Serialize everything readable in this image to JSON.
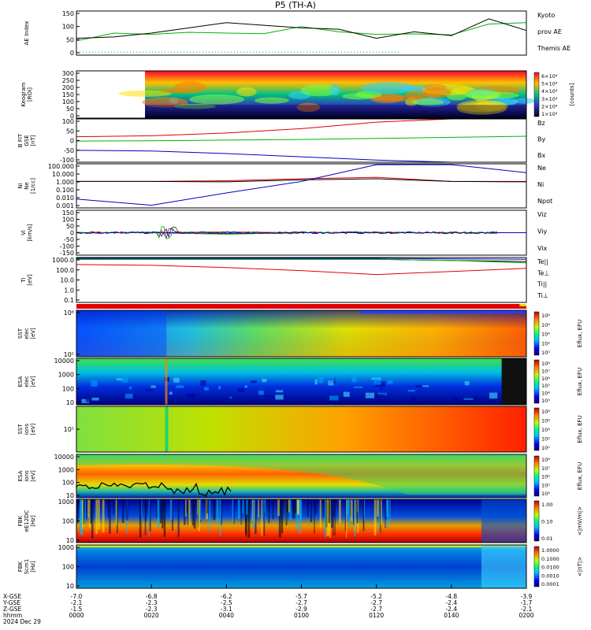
{
  "title": "P5 (TH-A)",
  "colors": {
    "red": "#e00000",
    "green": "#00b400",
    "blue": "#0000c8",
    "black": "#000000",
    "green_legend": "#00c000"
  },
  "panels": [
    {
      "id": "ae",
      "ylabel": [
        "AE Index"
      ],
      "ticks": [
        "150",
        "100",
        "50",
        "0"
      ],
      "legend": [
        [
          "Kyoto",
          "green"
        ],
        [
          "prov AE",
          "green"
        ],
        [
          "Themis AE",
          "black"
        ]
      ]
    },
    {
      "id": "keogram",
      "ylabel": [
        "Keogram",
        "[ROI]"
      ],
      "ticks": [
        "300",
        "250",
        "200",
        "150",
        "100",
        "50",
        "0"
      ],
      "colorbar_ticks": [
        "6×10⁴",
        "5×10⁴",
        "4×10⁴",
        "3×10⁴",
        "2×10⁴",
        "1×10⁴"
      ],
      "colorbar_label": "[counts]"
    },
    {
      "id": "bfield",
      "ylabel": [
        "B FIT",
        "GSE",
        "[nT]"
      ],
      "ticks": [
        "100",
        "50",
        "0",
        "-50",
        "-100"
      ],
      "legend": [
        [
          "Bz",
          "red"
        ],
        [
          "By",
          "green"
        ],
        [
          "Bx",
          "blue"
        ]
      ]
    },
    {
      "id": "density",
      "ylabel": [
        "Ni",
        "Ne",
        "[1/cc]"
      ],
      "ticks": [
        "100.000",
        "10.000",
        "1.000",
        "0.100",
        "0.010",
        "0.001"
      ],
      "legend": [
        [
          "Ne",
          "red"
        ],
        [
          "Ni",
          "black"
        ],
        [
          "Npot",
          "blue"
        ]
      ]
    },
    {
      "id": "velocity",
      "ylabel": [
        "Vi",
        "[km/s]"
      ],
      "ticks": [
        "150",
        "100",
        "50",
        "0",
        "-50",
        "-100",
        "-150"
      ],
      "legend": [
        [
          "Viz",
          "red"
        ],
        [
          "Viy",
          "green"
        ],
        [
          "Vix",
          "blue"
        ]
      ]
    },
    {
      "id": "temperature",
      "ylabel": [
        "Ti",
        "[eV]"
      ],
      "ticks": [
        "1000.0",
        "100.0",
        "10.0",
        "1.0",
        "0.1"
      ],
      "legend": [
        [
          "Te||",
          "black"
        ],
        [
          "Te⊥",
          "red"
        ],
        [
          "Ti||",
          "green"
        ],
        [
          "Ti⊥",
          "blue"
        ]
      ]
    },
    {
      "id": "sst_e",
      "ylabel": [
        "SST",
        "elec",
        "[eV]"
      ],
      "ticks": [
        "10⁶",
        "10⁵"
      ],
      "colorbar_ticks": [
        "10⁸",
        "10⁶",
        "10⁴",
        "10²",
        "10⁰"
      ],
      "colorbar_label": "Eflux, EFU"
    },
    {
      "id": "esa_e",
      "ylabel": [
        "ESA",
        "elec",
        "[eV]"
      ],
      "ticks": [
        "10000",
        "1000",
        "100",
        "10"
      ],
      "colorbar_ticks": [
        "10⁸",
        "10⁷",
        "10⁶",
        "10⁵",
        "10⁴",
        "10³"
      ],
      "colorbar_label": "Eflux, EFU"
    },
    {
      "id": "sst_i",
      "ylabel": [
        "SST",
        "ions",
        "[eV]"
      ],
      "ticks": [
        "10⁵"
      ],
      "colorbar_ticks": [
        "10⁸",
        "10⁶",
        "10⁴",
        "10²",
        "10⁰"
      ],
      "colorbar_label": "Eflux, EFU"
    },
    {
      "id": "esa_i",
      "ylabel": [
        "ESA",
        "ions",
        "[eV]"
      ],
      "ticks": [
        "10000",
        "1000",
        "100",
        "10"
      ],
      "colorbar_ticks": [
        "10⁸",
        "10⁷",
        "10⁶",
        "10⁵",
        "10⁴"
      ],
      "colorbar_label": "Eflux, EFU"
    },
    {
      "id": "fbk_e",
      "ylabel": [
        "FBK",
        "eE12DC",
        "[Hz]"
      ],
      "ticks": [
        "1000",
        "100",
        "10"
      ],
      "colorbar_ticks": [
        "1.00",
        "0.10",
        "0.01"
      ],
      "colorbar_label": "<|mV/m|>"
    },
    {
      "id": "fbk_b",
      "ylabel": [
        "FBK",
        "Scm1",
        "[Hz]"
      ],
      "ticks": [
        "1000",
        "100",
        "10"
      ],
      "colorbar_ticks": [
        "1.0000",
        "0.1000",
        "0.0100",
        "0.0010",
        "0.0001"
      ],
      "colorbar_label": "<|nT|>"
    }
  ],
  "xaxis": {
    "row_labels": [
      "X-GSE",
      "Y-GSE",
      "Z-GSE",
      "hhmm",
      "2024 Dec 29"
    ],
    "columns": [
      [
        "-7.0",
        "-2.1",
        "-1.5",
        "0000"
      ],
      [
        "-6.8",
        "-2.3",
        "-2.3",
        "0020"
      ],
      [
        "-6.2",
        "-2.5",
        "-3.1",
        "0040"
      ],
      [
        "-5.7",
        "-2.7",
        "-2.9",
        "0100"
      ],
      [
        "-5.2",
        "-2.7",
        "-2.7",
        "0120"
      ],
      [
        "-4.8",
        "-2.4",
        "-2.4",
        "0140"
      ],
      [
        "-3.9",
        "-1.7",
        "-2.1",
        "0200"
      ]
    ]
  },
  "chart_data": [
    {
      "type": "line",
      "panel": "AE Index",
      "xlabel": "hhmm",
      "x": [
        "0000",
        "0010",
        "0020",
        "0030",
        "0040",
        "0050",
        "0100",
        "0110",
        "0120",
        "0130",
        "0140",
        "0150",
        "0200"
      ],
      "series": [
        {
          "name": "Kyoto prov AE",
          "values": [
            45,
            75,
            70,
            78,
            75,
            73,
            100,
            80,
            70,
            72,
            68,
            110,
            115
          ]
        },
        {
          "name": "Themis AE",
          "values": [
            55,
            60,
            75,
            95,
            115,
            105,
            95,
            90,
            55,
            80,
            65,
            130,
            85
          ]
        }
      ],
      "ylim": [
        -10,
        160
      ]
    },
    {
      "type": "heatmap",
      "panel": "Keogram",
      "yrange": [
        0,
        300
      ],
      "note": "data begins near 0028"
    },
    {
      "type": "line",
      "panel": "B FIT GSE",
      "x": [
        "0000",
        "0020",
        "0040",
        "0100",
        "0120",
        "0140",
        "0200"
      ],
      "series": [
        {
          "name": "Bz",
          "values": [
            18,
            22,
            35,
            55,
            85,
            100,
            100
          ]
        },
        {
          "name": "By",
          "values": [
            -2,
            -1,
            2,
            5,
            10,
            15,
            20
          ]
        },
        {
          "name": "Bx",
          "values": [
            -45,
            -48,
            -60,
            -75,
            -90,
            -100,
            -100
          ]
        }
      ],
      "ylim": [
        -100,
        100
      ]
    },
    {
      "type": "line",
      "panel": "Ni Ne",
      "x": [
        "0000",
        "0020",
        "0040",
        "0100",
        "0120",
        "0140",
        "0200"
      ],
      "series": [
        {
          "name": "Ne",
          "values": [
            1.0,
            1.0,
            1.2,
            2.0,
            3.0,
            1.0,
            1.0
          ]
        },
        {
          "name": "Ni",
          "values": [
            1.0,
            1.0,
            0.9,
            1.5,
            2.0,
            1.0,
            0.9
          ]
        },
        {
          "name": "Npot",
          "values": [
            0.01,
            0.002,
            0.05,
            1.0,
            80,
            80,
            10
          ]
        }
      ],
      "ylim": [
        0.001,
        100
      ]
    },
    {
      "type": "line",
      "panel": "Vi",
      "x": [
        "0000",
        "0020",
        "0040",
        "0100",
        "0120",
        "0140",
        "0200"
      ],
      "series": [
        {
          "name": "Viz",
          "values": [
            0,
            0,
            5,
            0,
            0,
            0,
            0
          ]
        },
        {
          "name": "Viy",
          "values": [
            0,
            0,
            -10,
            0,
            0,
            0,
            0
          ]
        },
        {
          "name": "Vix",
          "values": [
            0,
            0,
            -5,
            0,
            0,
            0,
            0
          ]
        }
      ],
      "ylim": [
        -150,
        150
      ]
    },
    {
      "type": "line",
      "panel": "Ti",
      "x": [
        "0000",
        "0020",
        "0040",
        "0100",
        "0120",
        "0140",
        "0200"
      ],
      "series": [
        {
          "name": "Te||",
          "values": [
            2000,
            2000,
            2000,
            2000,
            2000,
            1500,
            1200
          ]
        },
        {
          "name": "Ti||",
          "values": [
            2000,
            2000,
            2000,
            2000,
            2000,
            1500,
            900
          ]
        },
        {
          "name": "Ti⊥",
          "values": [
            2500,
            2500,
            2500,
            2500,
            2500,
            2200,
            2000
          ]
        },
        {
          "name": "Te⊥",
          "values": [
            600,
            500,
            300,
            150,
            60,
            120,
            250
          ]
        }
      ],
      "ylim": [
        0.1,
        3000
      ],
      "scale": "log"
    },
    {
      "type": "heatmap",
      "panel": "SST elec"
    },
    {
      "type": "heatmap",
      "panel": "ESA elec",
      "yrange": [
        10,
        10000
      ]
    },
    {
      "type": "heatmap",
      "panel": "SST ions"
    },
    {
      "type": "heatmap",
      "panel": "ESA ions",
      "yrange": [
        10,
        10000
      ]
    },
    {
      "type": "heatmap",
      "panel": "FBK eE12DC",
      "yrange": [
        10,
        1000
      ]
    },
    {
      "type": "heatmap",
      "panel": "FBK Scm1",
      "yrange": [
        10,
        1000
      ]
    }
  ]
}
